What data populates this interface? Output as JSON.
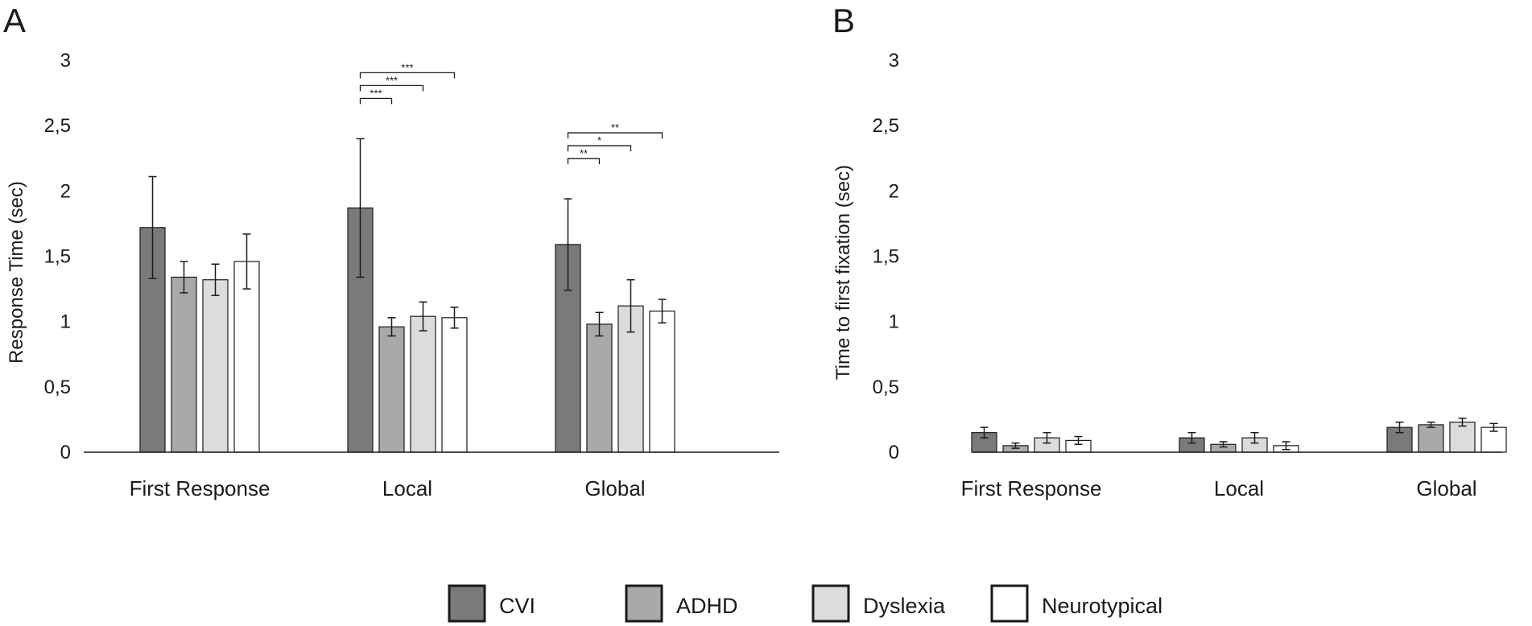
{
  "legend": [
    {
      "label": "CVI",
      "color": "#7a7a7a"
    },
    {
      "label": "ADHD",
      "color": "#a9a9a9"
    },
    {
      "label": "Dyslexia",
      "color": "#dcdcdc"
    },
    {
      "label": "Neurotypical",
      "color": "#ffffff"
    }
  ],
  "chart_data": [
    {
      "type": "bar",
      "panel_label": "A",
      "title": "",
      "xlabel": "",
      "ylabel": "Response Time (sec)",
      "ylim": [
        0,
        3
      ],
      "yticks": [
        "0",
        "0,5",
        "1",
        "1,5",
        "2",
        "2,5",
        "3"
      ],
      "categories": [
        "First Response",
        "Local",
        "Global"
      ],
      "series": [
        {
          "name": "CVI",
          "values": [
            1.72,
            1.87,
            1.59
          ],
          "errors": [
            0.39,
            0.53,
            0.35
          ]
        },
        {
          "name": "ADHD",
          "values": [
            1.34,
            0.96,
            0.98
          ],
          "errors": [
            0.12,
            0.07,
            0.09
          ]
        },
        {
          "name": "Dyslexia",
          "values": [
            1.32,
            1.04,
            1.12
          ],
          "errors": [
            0.12,
            0.11,
            0.2
          ]
        },
        {
          "name": "Neurotypical",
          "values": [
            1.46,
            1.03,
            1.08
          ],
          "errors": [
            0.21,
            0.08,
            0.09
          ]
        }
      ],
      "significance": [
        {
          "category": "Local",
          "from": "CVI",
          "to": "ADHD",
          "label": "***"
        },
        {
          "category": "Local",
          "from": "CVI",
          "to": "Dyslexia",
          "label": "***"
        },
        {
          "category": "Local",
          "from": "CVI",
          "to": "Neurotypical",
          "label": "***"
        },
        {
          "category": "Global",
          "from": "CVI",
          "to": "ADHD",
          "label": "**"
        },
        {
          "category": "Global",
          "from": "CVI",
          "to": "Dyslexia",
          "label": "*"
        },
        {
          "category": "Global",
          "from": "CVI",
          "to": "Neurotypical",
          "label": "**"
        }
      ]
    },
    {
      "type": "bar",
      "panel_label": "B",
      "title": "",
      "xlabel": "",
      "ylabel": "Time to first fixation (sec)",
      "ylim": [
        0,
        3
      ],
      "yticks": [
        "0",
        "0,5",
        "1",
        "1,5",
        "2",
        "2,5",
        "3"
      ],
      "categories": [
        "First Response",
        "Local",
        "Global"
      ],
      "series": [
        {
          "name": "CVI",
          "values": [
            0.15,
            0.11,
            0.19
          ],
          "errors": [
            0.04,
            0.04,
            0.04
          ]
        },
        {
          "name": "ADHD",
          "values": [
            0.05,
            0.06,
            0.21
          ],
          "errors": [
            0.02,
            0.02,
            0.02
          ]
        },
        {
          "name": "Dyslexia",
          "values": [
            0.11,
            0.11,
            0.23
          ],
          "errors": [
            0.04,
            0.04,
            0.03
          ]
        },
        {
          "name": "Neurotypical",
          "values": [
            0.09,
            0.05,
            0.19
          ],
          "errors": [
            0.03,
            0.03,
            0.03
          ]
        }
      ],
      "significance": []
    }
  ]
}
